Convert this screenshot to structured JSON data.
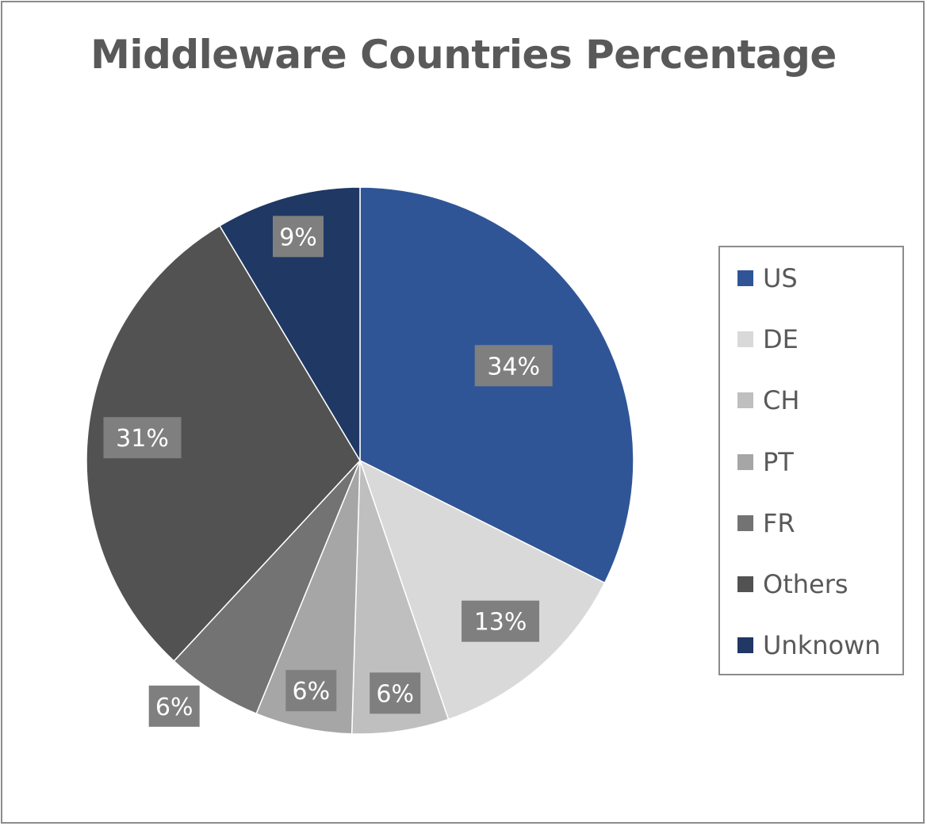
{
  "chart_data": {
    "type": "pie",
    "title": "Middleware Countries Percentage",
    "legend_position": "right",
    "slices": [
      {
        "label": "US",
        "value": 34,
        "display": "34%",
        "color": "#2f5597"
      },
      {
        "label": "DE",
        "value": 13,
        "display": "13%",
        "color": "#d9d9d9"
      },
      {
        "label": "CH",
        "value": 6,
        "display": "6%",
        "color": "#bfbfbf"
      },
      {
        "label": "PT",
        "value": 6,
        "display": "6%",
        "color": "#a6a6a6"
      },
      {
        "label": "FR",
        "value": 6,
        "display": "6%",
        "color": "#737373"
      },
      {
        "label": "Others",
        "value": 31,
        "display": "31%",
        "color": "#525252"
      },
      {
        "label": "Unknown",
        "value": 9,
        "display": "9%",
        "color": "#1f3864"
      }
    ],
    "label_box_color": "#7f7f7f"
  }
}
